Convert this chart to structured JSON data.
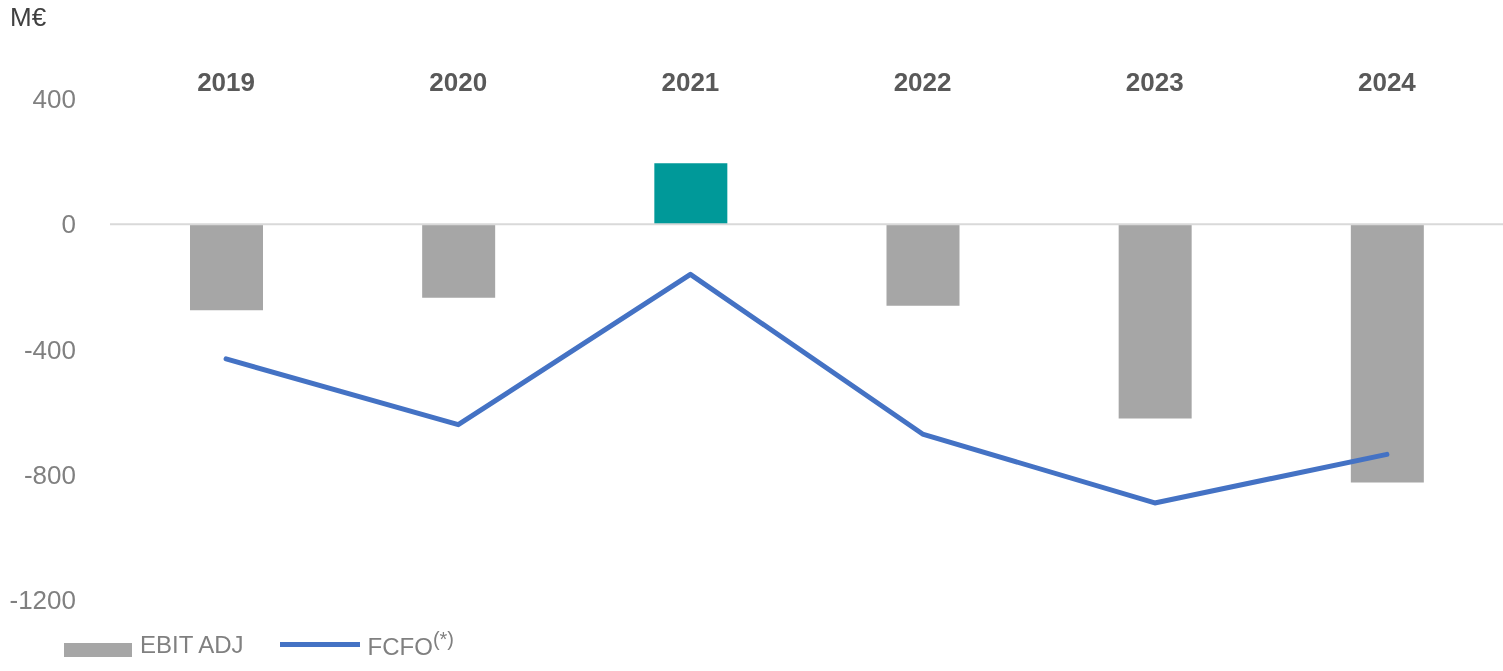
{
  "chart_data": {
    "type": "bar",
    "ylabel": "M€",
    "categories": [
      "2019",
      "2020",
      "2021",
      "2022",
      "2023",
      "2024"
    ],
    "series": [
      {
        "name": "EBIT ADJ",
        "color": "#a6a6a6",
        "colors": [
          "#a6a6a6",
          "#a6a6a6",
          "#009999",
          "#a6a6a6",
          "#a6a6a6",
          "#a6a6a6"
        ],
        "values": [
          -275,
          -235,
          195,
          -260,
          -620,
          -825
        ]
      },
      {
        "name": "FCFO$^{(*)}$",
        "type": "line",
        "color": "#4472c4",
        "values": [
          -430,
          -640,
          -160,
          -670,
          -890,
          -735
        ]
      }
    ],
    "ylim": [
      -1200,
      400
    ],
    "yticks": [
      -1200,
      -800,
      -400,
      0,
      400
    ],
    "ref_lines": [
      {
        "axis": "y",
        "value": 0,
        "color": "#d9d9d9"
      }
    ],
    "grid": false,
    "legend": "bottom left",
    "marker": "none",
    "line_style": "solid"
  }
}
